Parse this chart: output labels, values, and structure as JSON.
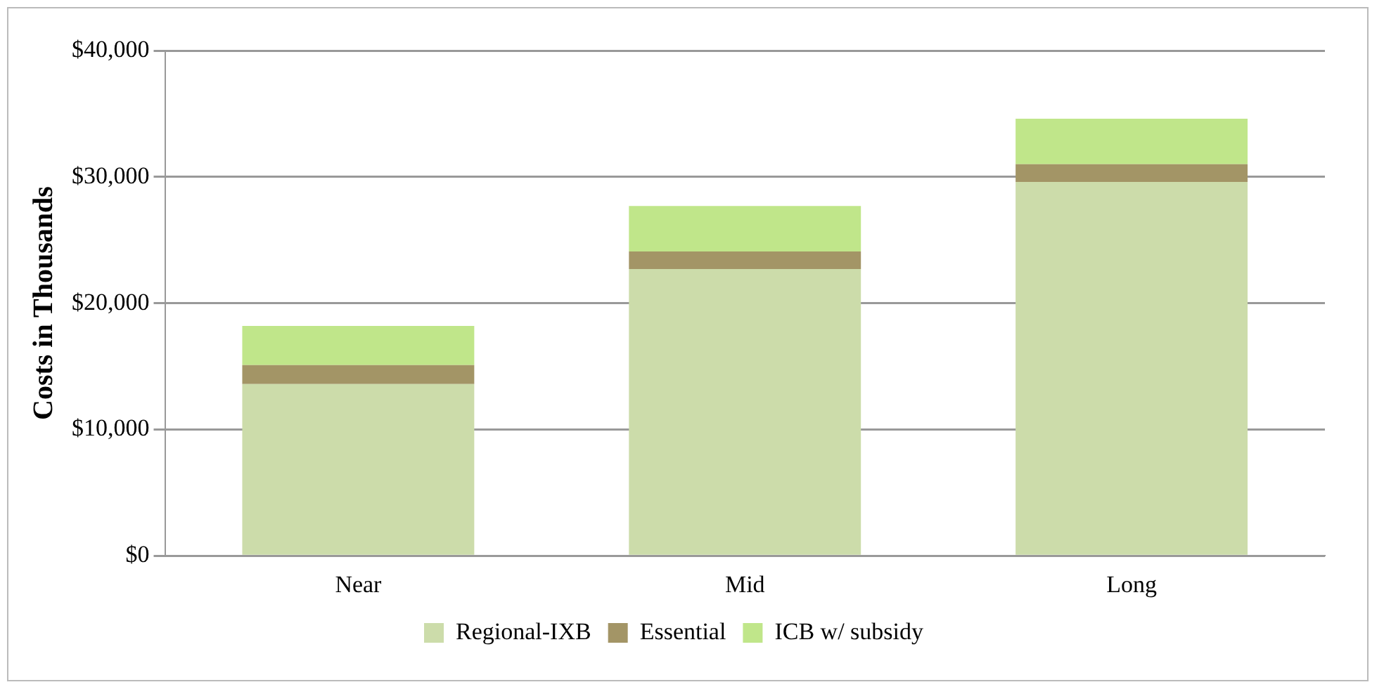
{
  "chart_data": {
    "type": "bar",
    "stacked": true,
    "ylabel": "Costs in Thousands",
    "categories": [
      "Near",
      "Mid",
      "Long"
    ],
    "series": [
      {
        "name": "Regional-IXB",
        "color": "#ccdcaa",
        "values": [
          13600,
          22700,
          29600
        ]
      },
      {
        "name": "Essential",
        "color": "#a39566",
        "values": [
          1500,
          1400,
          1400
        ]
      },
      {
        "name": "ICB w/ subsidy",
        "color": "#c0e68a",
        "values": [
          3100,
          3600,
          3600
        ]
      }
    ],
    "ylim": [
      0,
      40000
    ],
    "yticks": [
      {
        "value": 0,
        "label": "$0"
      },
      {
        "value": 10000,
        "label": "$10,000"
      },
      {
        "value": 20000,
        "label": "$20,000"
      },
      {
        "value": 30000,
        "label": "$30,000"
      },
      {
        "value": 40000,
        "label": "$40,000"
      }
    ],
    "grid": "y",
    "legend": "bottom"
  }
}
